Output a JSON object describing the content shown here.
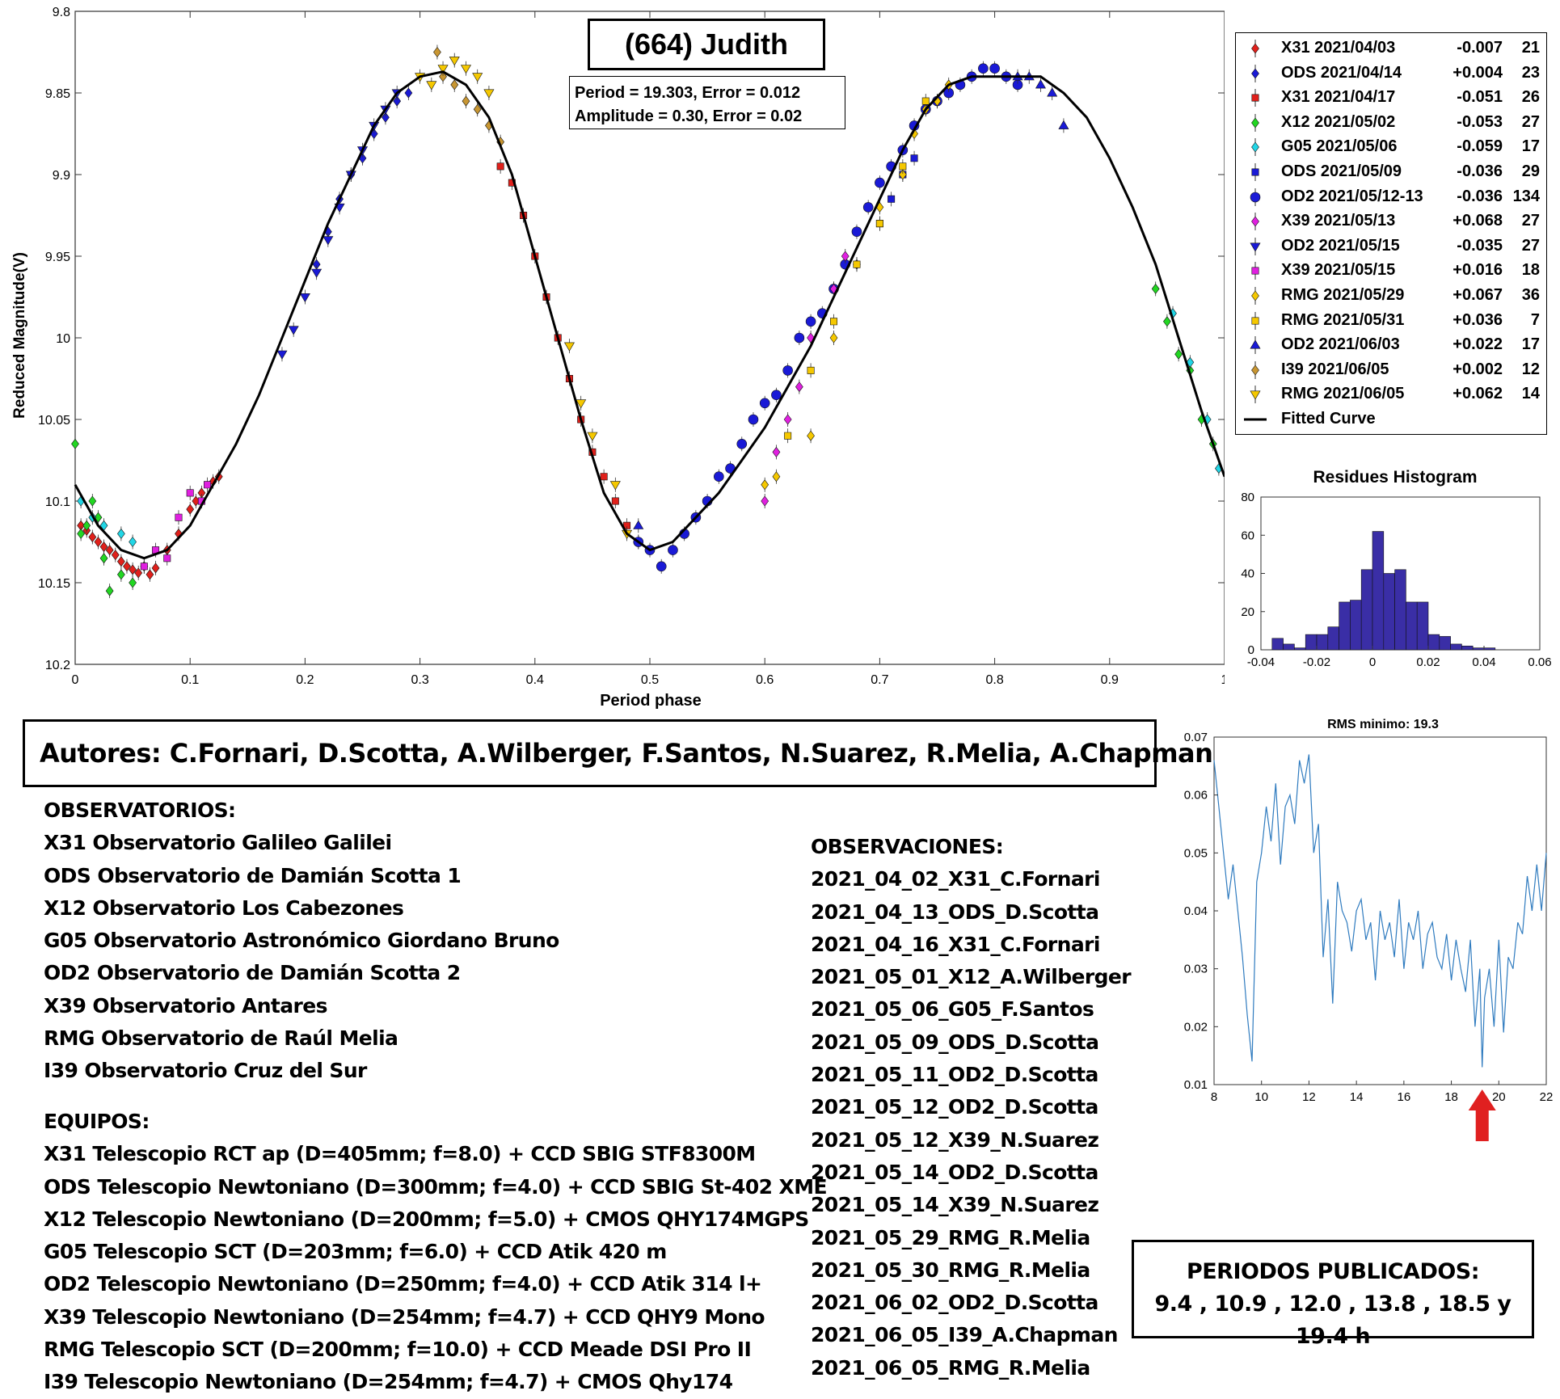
{
  "title": "(664) Judith",
  "info": {
    "period_line": "Period =  19.303, Error = 0.012",
    "amplitude_line": "Amplitude = 0.30, Error = 0.02"
  },
  "chart_data": [
    {
      "type": "scatter",
      "xlabel": "Period phase",
      "ylabel": "Reduced Magnitude(V)",
      "xlim": [
        0,
        1
      ],
      "ylim": [
        10.2,
        9.8
      ],
      "y_reversed": true,
      "xticks": [
        0,
        0.1,
        0.2,
        0.3,
        0.4,
        0.5,
        0.6,
        0.7,
        0.8,
        0.9,
        1
      ],
      "xtick_labels": [
        "0",
        "0.1",
        "0.2",
        "0.3",
        "0.4",
        "0.5",
        "0.6",
        "0.7",
        "0.8",
        "0.9",
        "1"
      ],
      "yticks": [
        9.8,
        9.85,
        9.9,
        9.95,
        10,
        10.05,
        10.1,
        10.15,
        10.2
      ],
      "ytick_labels": [
        "9.8",
        "9.85",
        "9.9",
        "9.95",
        "10",
        "10.05",
        "10.1",
        "10.15",
        "10.2"
      ],
      "fitted_curve": {
        "name": "Fitted Curve",
        "color": "#000000",
        "x": [
          0,
          0.02,
          0.04,
          0.06,
          0.08,
          0.1,
          0.12,
          0.14,
          0.16,
          0.18,
          0.2,
          0.22,
          0.24,
          0.26,
          0.28,
          0.3,
          0.32,
          0.34,
          0.36,
          0.38,
          0.4,
          0.42,
          0.44,
          0.46,
          0.48,
          0.5,
          0.52,
          0.54,
          0.56,
          0.58,
          0.6,
          0.62,
          0.64,
          0.66,
          0.68,
          0.7,
          0.72,
          0.74,
          0.76,
          0.78,
          0.8,
          0.82,
          0.84,
          0.86,
          0.88,
          0.9,
          0.92,
          0.94,
          0.96,
          0.98,
          1
        ],
        "y": [
          10.09,
          10.115,
          10.13,
          10.135,
          10.13,
          10.115,
          10.09,
          10.065,
          10.035,
          10.0,
          9.965,
          9.93,
          9.9,
          9.87,
          9.85,
          9.84,
          9.837,
          9.845,
          9.865,
          9.9,
          9.95,
          10.0,
          10.05,
          10.095,
          10.12,
          10.13,
          10.125,
          10.11,
          10.095,
          10.075,
          10.055,
          10.03,
          10.005,
          9.975,
          9.945,
          9.915,
          9.885,
          9.86,
          9.845,
          9.84,
          9.84,
          9.84,
          9.84,
          9.85,
          9.865,
          9.89,
          9.92,
          9.955,
          10.0,
          10.045,
          10.085
        ]
      },
      "series": [
        {
          "name": "X31 2021/04/03",
          "offset": "-0.007",
          "count": "21",
          "color": "#e0201b",
          "marker": "diamond",
          "x": [
            0.005,
            0.01,
            0.015,
            0.02,
            0.025,
            0.03,
            0.035,
            0.04,
            0.045,
            0.05,
            0.055,
            0.06,
            0.065,
            0.07,
            0.08,
            0.09,
            0.1,
            0.105,
            0.11,
            0.12,
            0.125
          ],
          "y": [
            10.115,
            10.118,
            10.122,
            10.125,
            10.128,
            10.13,
            10.133,
            10.137,
            10.14,
            10.142,
            10.144,
            10.14,
            10.145,
            10.141,
            10.13,
            10.12,
            10.105,
            10.1,
            10.095,
            10.088,
            10.085
          ]
        },
        {
          "name": "ODS 2021/04/14",
          "offset": "+0.004",
          "count": "23",
          "color": "#1a1ad6",
          "marker": "diamond",
          "x": [
            0.21,
            0.22,
            0.23,
            0.24,
            0.25,
            0.26,
            0.27,
            0.28,
            0.29
          ],
          "y": [
            9.955,
            9.935,
            9.915,
            9.9,
            9.89,
            9.875,
            9.865,
            9.855,
            9.85
          ]
        },
        {
          "name": "X31 2021/04/17",
          "offset": "-0.051",
          "count": "26",
          "color": "#e0201b",
          "marker": "square",
          "x": [
            0.37,
            0.38,
            0.39,
            0.4,
            0.41,
            0.42,
            0.43,
            0.44,
            0.45,
            0.46,
            0.47,
            0.48,
            0.49
          ],
          "y": [
            9.895,
            9.905,
            9.925,
            9.95,
            9.975,
            10.0,
            10.025,
            10.05,
            10.07,
            10.085,
            10.1,
            10.115,
            10.125
          ]
        },
        {
          "name": "X12 2021/05/02",
          "offset": "-0.053",
          "count": "27",
          "color": "#22d622",
          "marker": "diamond",
          "x": [
            0.0,
            0.005,
            0.01,
            0.015,
            0.02,
            0.025,
            0.03,
            0.04,
            0.05,
            0.94,
            0.95,
            0.96,
            0.97,
            0.98,
            0.99
          ],
          "y": [
            10.065,
            10.12,
            10.115,
            10.1,
            10.11,
            10.135,
            10.155,
            10.145,
            10.15,
            9.97,
            9.99,
            10.01,
            10.02,
            10.05,
            10.065
          ]
        },
        {
          "name": "G05 2021/05/06",
          "offset": "-0.059",
          "count": "17",
          "color": "#22d6e6",
          "marker": "diamond",
          "x": [
            0.005,
            0.015,
            0.025,
            0.04,
            0.05,
            0.955,
            0.97,
            0.985,
            0.995
          ],
          "y": [
            10.1,
            10.11,
            10.115,
            10.12,
            10.125,
            9.985,
            10.015,
            10.05,
            10.08
          ]
        },
        {
          "name": "ODS 2021/05/09",
          "offset": "-0.036",
          "count": "29",
          "color": "#1a1ad6",
          "marker": "square",
          "x": [
            0.7,
            0.71,
            0.72,
            0.73
          ],
          "y": [
            9.93,
            9.915,
            9.9,
            9.89
          ]
        },
        {
          "name": "OD2 2021/05/12-13",
          "offset": "-0.036",
          "count": "134",
          "color": "#1a1ad6",
          "marker": "circle",
          "x": [
            0.49,
            0.5,
            0.51,
            0.52,
            0.53,
            0.54,
            0.55,
            0.56,
            0.57,
            0.58,
            0.59,
            0.6,
            0.61,
            0.62,
            0.63,
            0.64,
            0.65,
            0.66,
            0.67,
            0.68,
            0.69,
            0.7,
            0.71,
            0.72,
            0.73,
            0.74,
            0.75,
            0.76,
            0.77,
            0.78,
            0.79,
            0.8,
            0.81,
            0.82
          ],
          "y": [
            10.125,
            10.13,
            10.14,
            10.13,
            10.12,
            10.11,
            10.1,
            10.085,
            10.08,
            10.065,
            10.05,
            10.04,
            10.035,
            10.02,
            10.0,
            9.99,
            9.985,
            9.97,
            9.955,
            9.935,
            9.92,
            9.905,
            9.895,
            9.885,
            9.87,
            9.86,
            9.855,
            9.85,
            9.845,
            9.84,
            9.835,
            9.835,
            9.84,
            9.845
          ]
        },
        {
          "name": "X39 2021/05/13",
          "offset": "+0.068",
          "count": "27",
          "color": "#e020e0",
          "marker": "diamond",
          "x": [
            0.6,
            0.61,
            0.62,
            0.63,
            0.64,
            0.66,
            0.67
          ],
          "y": [
            10.1,
            10.07,
            10.05,
            10.03,
            10.0,
            9.97,
            9.95
          ]
        },
        {
          "name": "OD2 2021/05/15",
          "offset": "-0.035",
          "count": "27",
          "color": "#1a1ad6",
          "marker": "triangle-down",
          "x": [
            0.18,
            0.19,
            0.2,
            0.21,
            0.22,
            0.23,
            0.24,
            0.25,
            0.26,
            0.27,
            0.28
          ],
          "y": [
            10.01,
            9.995,
            9.975,
            9.96,
            9.94,
            9.92,
            9.9,
            9.885,
            9.87,
            9.86,
            9.85
          ]
        },
        {
          "name": "X39 2021/05/15",
          "offset": "+0.016",
          "count": "18",
          "color": "#e020e0",
          "marker": "square",
          "x": [
            0.06,
            0.07,
            0.08,
            0.09,
            0.1,
            0.11,
            0.115
          ],
          "y": [
            10.14,
            10.13,
            10.135,
            10.11,
            10.095,
            10.1,
            10.09
          ]
        },
        {
          "name": "RMG 2021/05/29",
          "offset": "+0.067",
          "count": "36",
          "color": "#f5c800",
          "marker": "diamond",
          "x": [
            0.6,
            0.61,
            0.64,
            0.66,
            0.68,
            0.7,
            0.72,
            0.73,
            0.74,
            0.75,
            0.76
          ],
          "y": [
            10.09,
            10.085,
            10.06,
            10.0,
            9.955,
            9.92,
            9.9,
            9.875,
            9.86,
            9.855,
            9.845
          ]
        },
        {
          "name": "RMG 2021/05/31",
          "offset": "+0.036",
          "count": "7",
          "color": "#f5c800",
          "marker": "square",
          "x": [
            0.62,
            0.64,
            0.66,
            0.68,
            0.7,
            0.72,
            0.74
          ],
          "y": [
            10.06,
            10.02,
            9.99,
            9.955,
            9.93,
            9.895,
            9.855
          ]
        },
        {
          "name": "OD2 2021/06/03",
          "offset": "+0.022",
          "count": "17",
          "color": "#1a1ad6",
          "marker": "triangle-up",
          "x": [
            0.49,
            0.82,
            0.83,
            0.84,
            0.85,
            0.86
          ],
          "y": [
            10.115,
            9.84,
            9.84,
            9.845,
            9.85,
            9.87
          ]
        },
        {
          "name": "I39 2021/06/05",
          "offset": "+0.002",
          "count": "12",
          "color": "#c89632",
          "marker": "diamond",
          "x": [
            0.315,
            0.32,
            0.33,
            0.34,
            0.35,
            0.36,
            0.37
          ],
          "y": [
            9.825,
            9.84,
            9.845,
            9.855,
            9.86,
            9.87,
            9.88
          ]
        },
        {
          "name": "RMG 2021/06/05",
          "offset": "+0.062",
          "count": "14",
          "color": "#f5c800",
          "marker": "triangle-down",
          "x": [
            0.3,
            0.31,
            0.32,
            0.33,
            0.34,
            0.35,
            0.36,
            0.43,
            0.44,
            0.45,
            0.47,
            0.48
          ],
          "y": [
            9.84,
            9.845,
            9.835,
            9.83,
            9.835,
            9.84,
            9.85,
            10.005,
            10.04,
            10.06,
            10.09,
            10.12
          ]
        }
      ],
      "legend_extra": "Fitted Curve",
      "legend_position": "outside-right-top"
    },
    {
      "type": "bar",
      "title": "Residues Histogram",
      "xlim": [
        -0.04,
        0.06
      ],
      "ylim": [
        0,
        80
      ],
      "xtick_labels": [
        "-0.04",
        "-0.02",
        "0",
        "0.02",
        "0.04",
        "0.06"
      ],
      "ytick_labels": [
        "0",
        "20",
        "40",
        "60",
        "80"
      ],
      "bin_width": 0.004,
      "bin_starts": [
        -0.036,
        -0.032,
        -0.028,
        -0.024,
        -0.02,
        -0.016,
        -0.012,
        -0.008,
        -0.004,
        0.0,
        0.004,
        0.008,
        0.012,
        0.016,
        0.02,
        0.024,
        0.028,
        0.032,
        0.036,
        0.04
      ],
      "values": [
        6,
        3,
        1,
        8,
        8,
        12,
        25,
        26,
        42,
        62,
        40,
        42,
        25,
        25,
        8,
        7,
        3,
        2,
        1,
        1
      ],
      "color": "#3a2ea6"
    },
    {
      "type": "line",
      "title": "RMS minimo: 19.3",
      "xlim": [
        8,
        22
      ],
      "ylim": [
        0.01,
        0.07
      ],
      "xtick_labels": [
        "8",
        "10",
        "12",
        "14",
        "16",
        "18",
        "20",
        "22"
      ],
      "ytick_labels": [
        "0.01",
        "0.02",
        "0.03",
        "0.04",
        "0.05",
        "0.06",
        "0.07"
      ],
      "color": "#2f7bbf",
      "x": [
        8.0,
        8.2,
        8.4,
        8.6,
        8.8,
        9.0,
        9.2,
        9.4,
        9.6,
        9.8,
        10.0,
        10.2,
        10.4,
        10.6,
        10.8,
        11.0,
        11.2,
        11.4,
        11.6,
        11.8,
        12.0,
        12.2,
        12.4,
        12.6,
        12.8,
        13.0,
        13.2,
        13.4,
        13.6,
        13.8,
        14.0,
        14.2,
        14.4,
        14.6,
        14.8,
        15.0,
        15.2,
        15.4,
        15.6,
        15.8,
        16.0,
        16.2,
        16.4,
        16.6,
        16.8,
        17.0,
        17.2,
        17.4,
        17.6,
        17.8,
        18.0,
        18.2,
        18.4,
        18.6,
        18.8,
        19.0,
        19.2,
        19.3,
        19.4,
        19.6,
        19.8,
        20.0,
        20.2,
        20.4,
        20.6,
        20.8,
        21.0,
        21.2,
        21.4,
        21.6,
        21.8,
        22.0
      ],
      "y": [
        0.066,
        0.058,
        0.05,
        0.042,
        0.048,
        0.04,
        0.032,
        0.022,
        0.014,
        0.045,
        0.05,
        0.058,
        0.052,
        0.062,
        0.048,
        0.058,
        0.06,
        0.055,
        0.066,
        0.062,
        0.067,
        0.05,
        0.055,
        0.032,
        0.042,
        0.024,
        0.045,
        0.04,
        0.038,
        0.033,
        0.04,
        0.042,
        0.035,
        0.038,
        0.028,
        0.04,
        0.035,
        0.038,
        0.032,
        0.042,
        0.03,
        0.038,
        0.035,
        0.04,
        0.03,
        0.036,
        0.038,
        0.032,
        0.03,
        0.036,
        0.028,
        0.035,
        0.03,
        0.026,
        0.035,
        0.02,
        0.03,
        0.013,
        0.025,
        0.03,
        0.02,
        0.035,
        0.019,
        0.032,
        0.03,
        0.038,
        0.036,
        0.046,
        0.04,
        0.048,
        0.04,
        0.05
      ]
    }
  ],
  "authors": "Autores: C.Fornari, D.Scotta, A.Wilberger, F.Santos, N.Suarez, R.Melia, A.Chapman",
  "observatorios": {
    "heading": "OBSERVATORIOS:",
    "items": [
      "X31 Observatorio Galileo Galilei",
      "ODS Observatorio de Damián Scotta 1",
      "X12 Observatorio Los Cabezones",
      "G05 Observatorio Astronómico Giordano Bruno",
      "OD2 Observatorio de Damián Scotta 2",
      "X39 Observatorio Antares",
      "RMG Observatorio de Raúl Melia",
      "I39 Observatorio Cruz del Sur"
    ]
  },
  "equipos": {
    "heading": "EQUIPOS:",
    "items": [
      "X31 Telescopio RCT ap (D=405mm; f=8.0) + CCD SBIG STF8300M",
      "ODS Telescopio Newtoniano (D=300mm; f=4.0) + CCD SBIG St-402 XME",
      "X12 Telescopio Newtoniano (D=200mm; f=5.0) + CMOS QHY174MGPS",
      "G05 Telescopio SCT (D=203mm; f=6.0) + CCD Atik 420 m",
      "OD2 Telescopio Newtoniano (D=250mm; f=4.0) + CCD Atik 314 l+",
      "X39 Telescopio Newtoniano (D=254mm; f=4.7) + CCD QHY9 Mono",
      "RMG Telescopio SCT (D=200mm; f=10.0) + CCD Meade DSI Pro II",
      "I39 Telescopio Newtoniano (D=254mm; f=4.7) + CMOS Qhy174"
    ]
  },
  "observaciones": {
    "heading": "OBSERVACIONES:",
    "items": [
      "2021_04_02_X31_C.Fornari",
      "2021_04_13_ODS_D.Scotta",
      "2021_04_16_X31_C.Fornari",
      "2021_05_01_X12_A.Wilberger",
      "2021_05_06_G05_F.Santos",
      "2021_05_09_ODS_D.Scotta",
      "2021_05_11_OD2_D.Scotta",
      "2021_05_12_OD2_D.Scotta",
      "2021_05_12_X39_N.Suarez",
      "2021_05_14_OD2_D.Scotta",
      "2021_05_14_X39_N.Suarez",
      "2021_05_29_RMG_R.Melia",
      "2021_05_30_RMG_R.Melia",
      "2021_06_02_OD2_D.Scotta",
      "2021_06_05_I39_A.Chapman",
      "2021_06_05_RMG_R.Melia"
    ]
  },
  "periodos": {
    "heading": "PERIODOS PUBLICADOS:",
    "values": "9.4 , 10.9 , 12.0 , 13.8 , 18.5 y 19.4 h"
  },
  "arrow_color": "#e02020"
}
